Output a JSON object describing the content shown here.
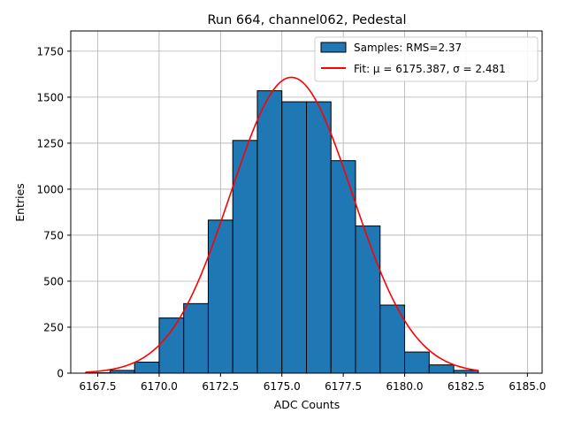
{
  "chart_data": {
    "type": "bar",
    "title": "Run 664, channel062, Pedestal",
    "xlabel": "ADC Counts",
    "ylabel": "Entries",
    "xlim": [
      6166.4,
      6185.6
    ],
    "ylim": [
      0,
      1860
    ],
    "xticks": [
      6167.5,
      6170.0,
      6172.5,
      6175.0,
      6177.5,
      6180.0,
      6182.5,
      6185.0
    ],
    "xtick_labels": [
      "6167.5",
      "6170.0",
      "6172.5",
      "6175.0",
      "6177.5",
      "6180.0",
      "6182.5",
      "6185.0"
    ],
    "yticks": [
      0,
      250,
      500,
      750,
      1000,
      1250,
      1500,
      1750
    ],
    "ytick_labels": [
      "0",
      "250",
      "500",
      "750",
      "1000",
      "1250",
      "1500",
      "1750"
    ],
    "grid": true,
    "legend_position": "top-right",
    "series": [
      {
        "name": "Samples: RMS=2.37",
        "kind": "histogram",
        "color": "#1f77b4",
        "edgecolor": "#000000",
        "bin_edges": [
          6167,
          6168,
          6169,
          6170,
          6171,
          6172,
          6173,
          6174,
          6175,
          6176,
          6177,
          6178,
          6179,
          6180,
          6181,
          6182,
          6183
        ],
        "values": [
          2,
          15,
          60,
          300,
          378,
          832,
          1265,
          1535,
          1475,
          1475,
          1155,
          800,
          370,
          115,
          45,
          15
        ]
      },
      {
        "name": "Fit: μ = 6175.387, σ = 2.481",
        "kind": "gaussian-fit",
        "color": "#ff0000",
        "mu": 6175.387,
        "sigma": 2.481,
        "peak": 1608,
        "x_range": [
          6167,
          6183
        ]
      }
    ]
  }
}
